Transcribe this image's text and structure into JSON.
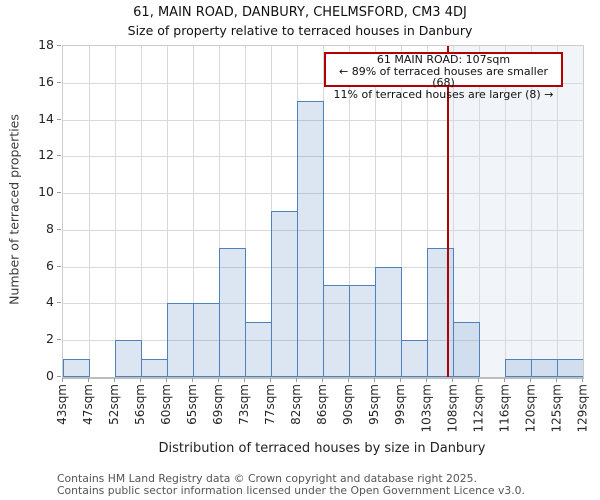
{
  "title": "61, MAIN ROAD, DANBURY, CHELMSFORD, CM3 4DJ",
  "subtitle": "Size of property relative to terraced houses in Danbury",
  "chart_data": {
    "type": "bar",
    "histogram": true,
    "categories": [
      "43sqm",
      "47sqm",
      "52sqm",
      "56sqm",
      "60sqm",
      "65sqm",
      "69sqm",
      "73sqm",
      "77sqm",
      "82sqm",
      "86sqm",
      "90sqm",
      "95sqm",
      "99sqm",
      "103sqm",
      "108sqm",
      "112sqm",
      "116sqm",
      "120sqm",
      "125sqm",
      "129sqm"
    ],
    "bin_edges_sqm": [
      43,
      47,
      52,
      56,
      60,
      65,
      69,
      73,
      77,
      82,
      86,
      90,
      95,
      99,
      103,
      108,
      112,
      116,
      120,
      125,
      129
    ],
    "values": [
      1,
      0,
      2,
      1,
      4,
      4,
      7,
      3,
      9,
      15,
      5,
      5,
      6,
      2,
      7,
      3,
      0,
      1,
      1,
      1
    ],
    "title": "61, MAIN ROAD, DANBURY, CHELMSFORD, CM3 4DJ",
    "subtitle": "Size of property relative to terraced houses in Danbury",
    "xlabel": "Distribution of terraced houses by size in Danbury",
    "ylabel": "Number of terraced properties",
    "ylim": [
      0,
      18
    ],
    "ytick_step": 2,
    "yticks": [
      0,
      2,
      4,
      6,
      8,
      10,
      12,
      14,
      16,
      18
    ],
    "grid": true,
    "marker": {
      "value_sqm": 107,
      "label": "61 MAIN ROAD: 107sqm"
    },
    "colors": {
      "bar_fill": "rgba(79,129,189,0.2)",
      "bar_border": "#4f81bd",
      "grid": "#d9d9d9",
      "marker_red": "#b00000",
      "shade_right_of_marker": "rgba(79,129,189,0.08)"
    }
  },
  "annotation": {
    "line1": "61 MAIN ROAD: 107sqm",
    "line2": "← 89% of terraced houses are smaller (68)",
    "line3": "11% of terraced houses are larger (8) →"
  },
  "footer": {
    "line1": "Contains HM Land Registry data © Crown copyright and database right 2025.",
    "line2": "Contains public sector information licensed under the Open Government Licence v3.0."
  }
}
